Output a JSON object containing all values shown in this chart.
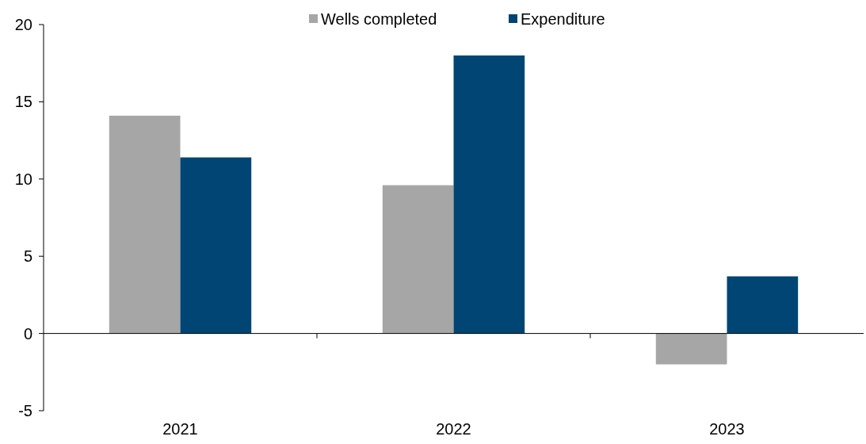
{
  "chart_data": {
    "type": "bar",
    "categories": [
      "2021",
      "2022",
      "2023"
    ],
    "series": [
      {
        "name": "Wells completed",
        "color": "#a6a6a6",
        "values": [
          14.1,
          9.6,
          -2.0
        ]
      },
      {
        "name": "Expenditure",
        "color": "#004574",
        "values": [
          11.4,
          18.0,
          3.7
        ]
      }
    ],
    "ylim": [
      -5,
      20
    ],
    "yticks": [
      -5,
      0,
      5,
      10,
      15,
      20
    ],
    "legend": "top"
  }
}
